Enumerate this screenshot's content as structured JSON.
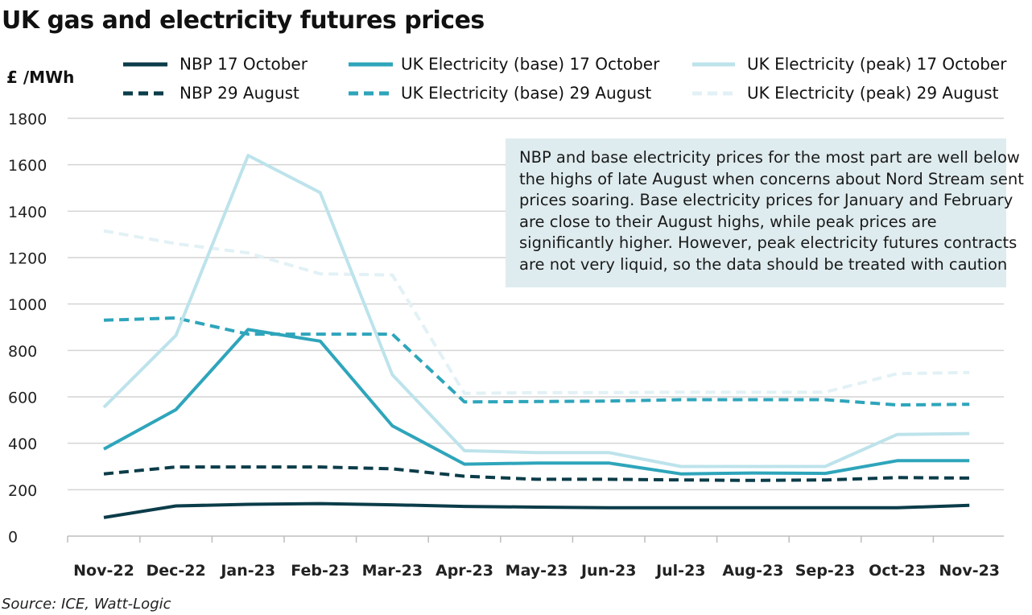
{
  "title": "UK gas and electricity futures prices",
  "source": "Source: ICE, Watt-Logic",
  "annotation": [
    "NBP and base electricity prices for the most part are well below",
    "the highs of late August when concerns about Nord Stream sent",
    "prices soaring. Base electricity prices for January and February",
    "are close to their August highs, while peak prices are",
    "significantly higher. However, peak electricity futures contracts",
    "are not very liquid, so the data should be treated with caution"
  ],
  "chart_data": {
    "type": "line",
    "title": "UK gas and electricity futures prices",
    "ylabel": "£ /MWh",
    "xlabel": "",
    "ylim": [
      0,
      1800
    ],
    "yticks": [
      0,
      200,
      400,
      600,
      800,
      1000,
      1200,
      1400,
      1600,
      1800
    ],
    "grid": true,
    "legend_position": "top",
    "categories": [
      "Nov-22",
      "Dec-22",
      "Jan-23",
      "Feb-23",
      "Mar-23",
      "Apr-23",
      "May-23",
      "Jun-23",
      "Jul-23",
      "Aug-23",
      "Sep-23",
      "Oct-23",
      "Nov-23"
    ],
    "series": [
      {
        "name": "NBP 17 October",
        "color": "#0b3c49",
        "style": "solid",
        "values": [
          80,
          130,
          137,
          140,
          135,
          128,
          125,
          122,
          122,
          122,
          122,
          122,
          133
        ]
      },
      {
        "name": "UK Electricity (base) 17 October",
        "color": "#2ea5bb",
        "style": "solid",
        "values": [
          375,
          545,
          890,
          840,
          475,
          310,
          315,
          315,
          268,
          272,
          270,
          325,
          325
        ]
      },
      {
        "name": "UK Electricity (peak) 17 October",
        "color": "#bde3eb",
        "style": "solid",
        "values": [
          555,
          865,
          1640,
          1480,
          695,
          368,
          360,
          360,
          300,
          300,
          300,
          438,
          442
        ]
      },
      {
        "name": "NBP 29 August",
        "color": "#0b3c49",
        "style": "dashed",
        "values": [
          268,
          298,
          298,
          298,
          290,
          258,
          245,
          245,
          242,
          240,
          242,
          252,
          250
        ]
      },
      {
        "name": "UK Electricity (base) 29 August",
        "color": "#2ea5bb",
        "style": "dashed",
        "values": [
          930,
          940,
          870,
          870,
          870,
          578,
          580,
          582,
          588,
          588,
          588,
          565,
          568
        ]
      },
      {
        "name": "UK Electricity (peak) 29 August",
        "color": "#e2f1f5",
        "style": "dashed",
        "values": [
          1315,
          1260,
          1220,
          1130,
          1125,
          615,
          618,
          618,
          620,
          620,
          620,
          700,
          705
        ]
      }
    ]
  }
}
